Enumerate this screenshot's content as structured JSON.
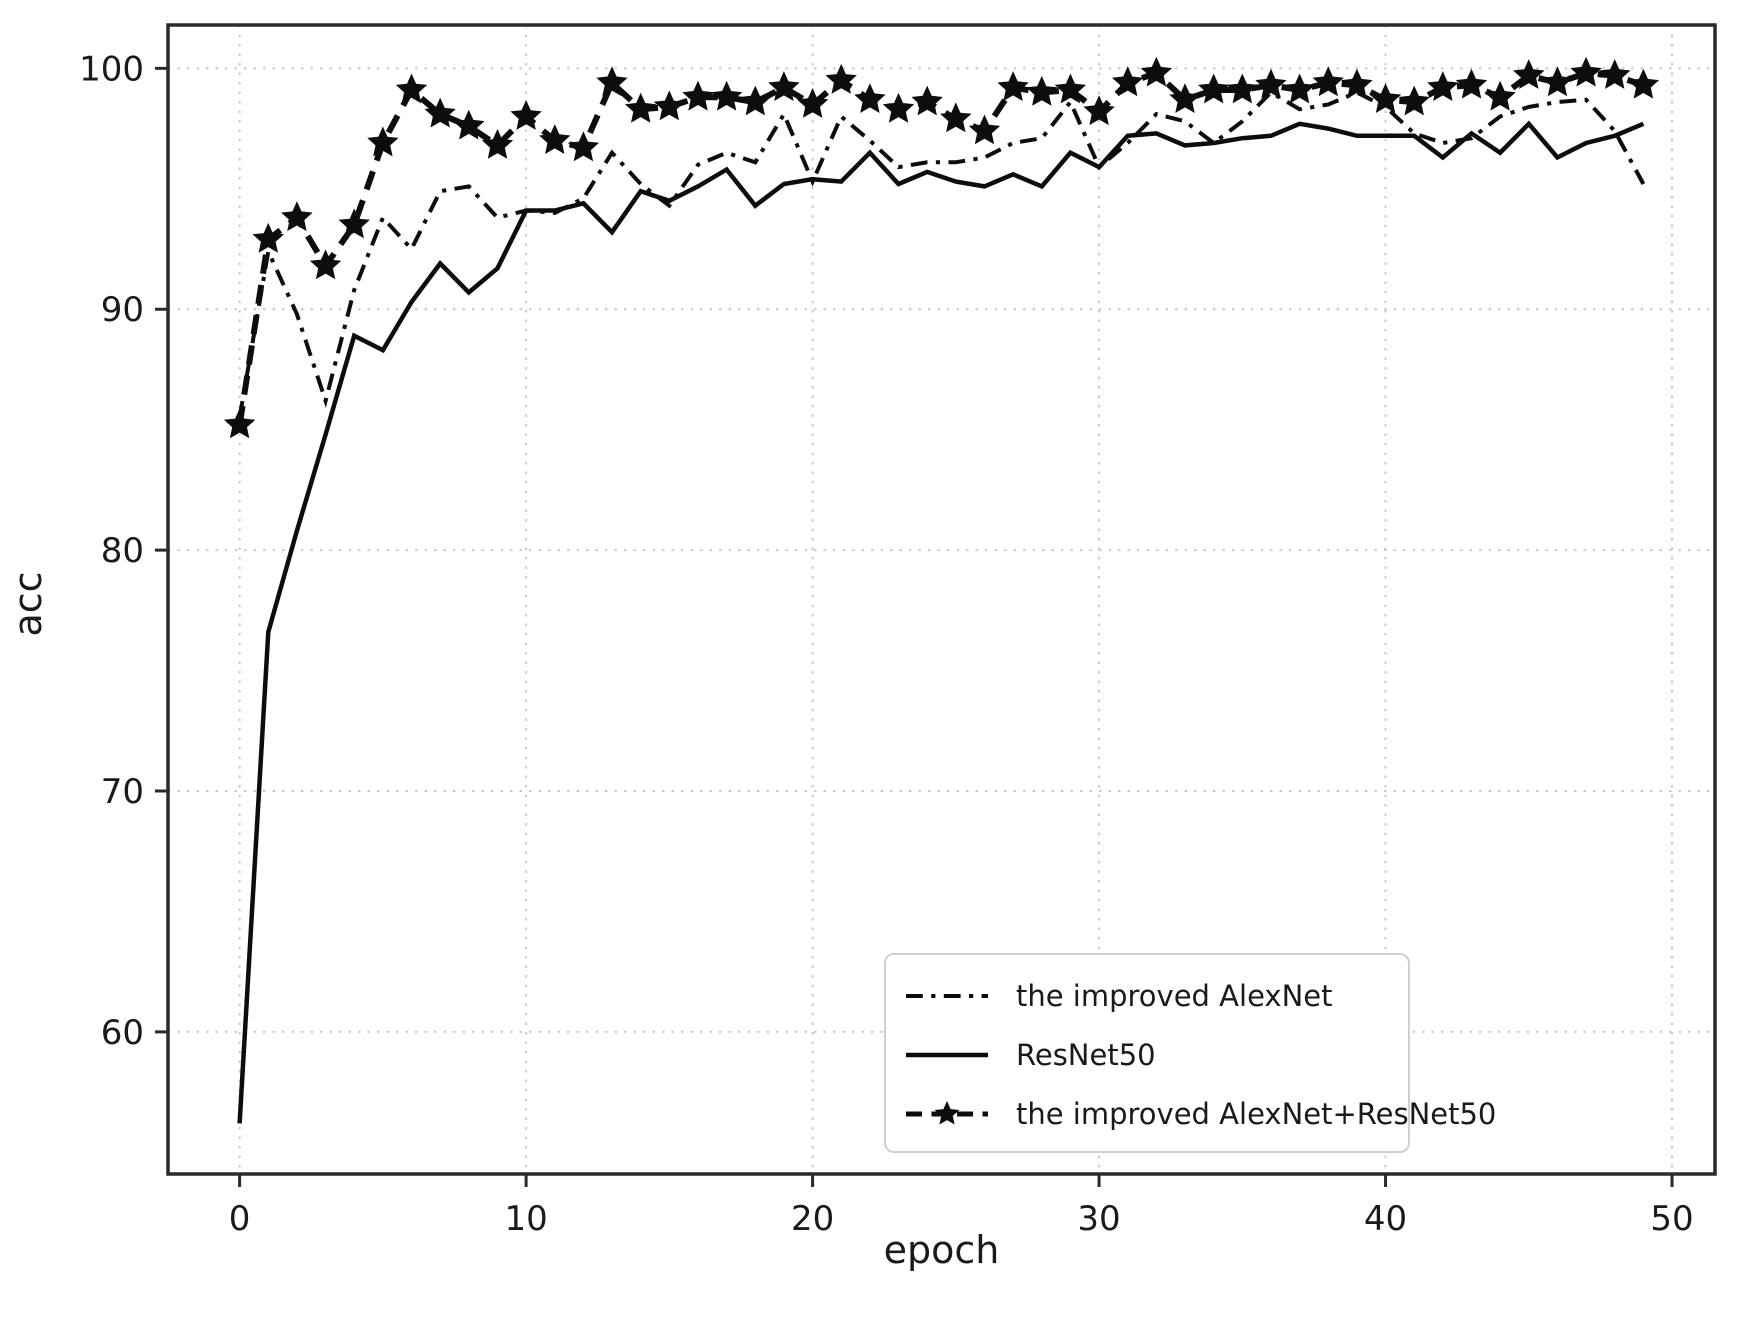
{
  "figure": {
    "background": "#ffffff",
    "frame_color": "#2a2a2a",
    "grid_color": "#c9c9c9",
    "tick_color": "#1a1a1a"
  },
  "legend": {
    "position": "lower right",
    "border_color": "#cfcfcf"
  },
  "chart_data": {
    "type": "line",
    "title": "",
    "xlabel": "epoch",
    "ylabel": "acc",
    "x_ticks": [
      0,
      10,
      20,
      30,
      40,
      50
    ],
    "y_ticks": [
      60,
      70,
      80,
      90,
      100
    ],
    "xlim": [
      -2.5,
      51.5
    ],
    "ylim": [
      54.1,
      101.8
    ],
    "grid": true,
    "grid_style": "dotted",
    "legend_position": "lower right",
    "x": [
      0,
      1,
      2,
      3,
      4,
      5,
      6,
      7,
      8,
      9,
      10,
      11,
      12,
      13,
      14,
      15,
      16,
      17,
      18,
      19,
      20,
      21,
      22,
      23,
      24,
      25,
      26,
      27,
      28,
      29,
      30,
      31,
      32,
      33,
      34,
      35,
      36,
      37,
      38,
      39,
      40,
      41,
      42,
      43,
      44,
      45,
      46,
      47,
      48,
      49
    ],
    "series": [
      {
        "name": "the improved AlexNet",
        "color": "#0d0d0d",
        "linestyle": "dashdot",
        "marker": "none",
        "linewidth": 4,
        "values": [
          85.5,
          92.4,
          89.8,
          86.2,
          90.8,
          93.8,
          92.5,
          94.9,
          95.1,
          93.8,
          94.1,
          94.0,
          94.6,
          96.5,
          95.2,
          94.3,
          96.0,
          96.5,
          96.1,
          98.1,
          95.3,
          98.0,
          97.0,
          95.9,
          96.1,
          96.1,
          96.3,
          96.9,
          97.1,
          98.6,
          95.9,
          96.9,
          98.1,
          97.8,
          96.9,
          97.8,
          99.0,
          98.3,
          98.5,
          99.0,
          98.4,
          97.3,
          96.9,
          97.1,
          98.0,
          98.4,
          98.6,
          98.7,
          97.4,
          95.2
        ]
      },
      {
        "name": "ResNet50",
        "color": "#0d0d0d",
        "linestyle": "solid",
        "marker": "none",
        "linewidth": 4.5,
        "values": [
          56.2,
          76.6,
          80.8,
          84.8,
          88.9,
          88.3,
          90.3,
          91.9,
          90.7,
          91.7,
          94.1,
          94.1,
          94.4,
          93.2,
          94.9,
          94.5,
          95.1,
          95.8,
          94.3,
          95.2,
          95.4,
          95.3,
          96.5,
          95.2,
          95.7,
          95.3,
          95.1,
          95.6,
          95.1,
          96.5,
          95.9,
          97.2,
          97.3,
          96.8,
          96.9,
          97.1,
          97.2,
          97.7,
          97.5,
          97.2,
          97.2,
          97.2,
          96.3,
          97.3,
          96.5,
          97.7,
          96.3,
          96.9,
          97.2,
          97.7
        ]
      },
      {
        "name": "the improved AlexNet+ResNet50",
        "color": "#0d0d0d",
        "linestyle": "dashed",
        "marker": "star",
        "linewidth": 6,
        "values": [
          85.2,
          92.9,
          93.8,
          91.8,
          93.5,
          96.9,
          99.1,
          98.1,
          97.6,
          96.8,
          98.0,
          97.0,
          96.7,
          99.4,
          98.3,
          98.4,
          98.8,
          98.8,
          98.6,
          99.2,
          98.5,
          99.5,
          98.7,
          98.3,
          98.6,
          97.9,
          97.4,
          99.2,
          99.0,
          99.1,
          98.2,
          99.4,
          99.8,
          98.7,
          99.1,
          99.1,
          99.3,
          99.1,
          99.4,
          99.3,
          98.7,
          98.6,
          99.2,
          99.3,
          98.8,
          99.7,
          99.4,
          99.8,
          99.7,
          99.3
        ]
      }
    ]
  }
}
